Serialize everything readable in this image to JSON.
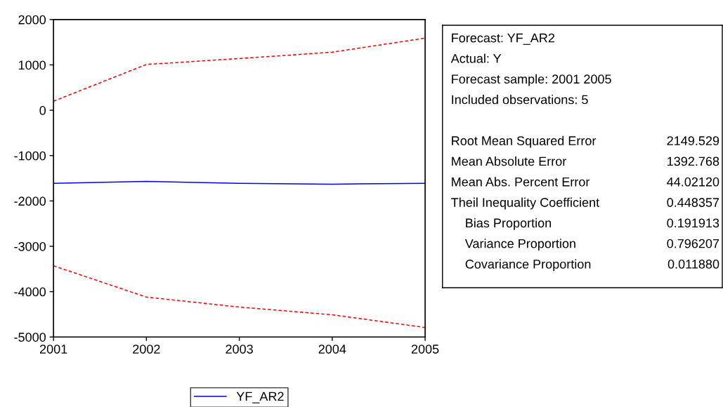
{
  "chart_data": [
    {
      "type": "line",
      "x": [
        2001,
        2002,
        2003,
        2004,
        2005
      ],
      "xlim": [
        2001,
        2005
      ],
      "xticks": [
        2001,
        2002,
        2003,
        2004,
        2005
      ],
      "ylim": [
        -5000,
        2000
      ],
      "yticks": [
        -5000,
        -4000,
        -3000,
        -2000,
        -1000,
        0,
        1000,
        2000
      ],
      "grid": false,
      "legend": "bottom",
      "series": [
        {
          "name": "YF_AR2",
          "color": "#0000ff",
          "line_style": "solid",
          "values": [
            -1610,
            -1570,
            -1610,
            -1630,
            -1610
          ]
        },
        {
          "color": "#ff0000",
          "line_style": "dashed",
          "values": [
            200,
            1010,
            1140,
            1280,
            1590
          ]
        },
        {
          "color": "#ff0000",
          "line_style": "dashed",
          "values": [
            -3430,
            -4120,
            -4340,
            -4510,
            -4790
          ]
        }
      ]
    },
    {
      "type": "other",
      "annotations": [
        "Forecast: YF_AR2",
        "Actual: Y",
        "Forecast sample: 2001 2005",
        "Included observations: 5",
        "Root Mean Squared Error\t2149.529",
        "Mean Absolute Error\t1392.768",
        "Mean Abs. Percent Error\t44.02120",
        "Theil Inequality Coefficient\t0.448357",
        "    Bias Proportion\t0.191913",
        "    Variance Proportion\t0.796207",
        "    Covariance Proportion\t0.011880"
      ]
    }
  ]
}
